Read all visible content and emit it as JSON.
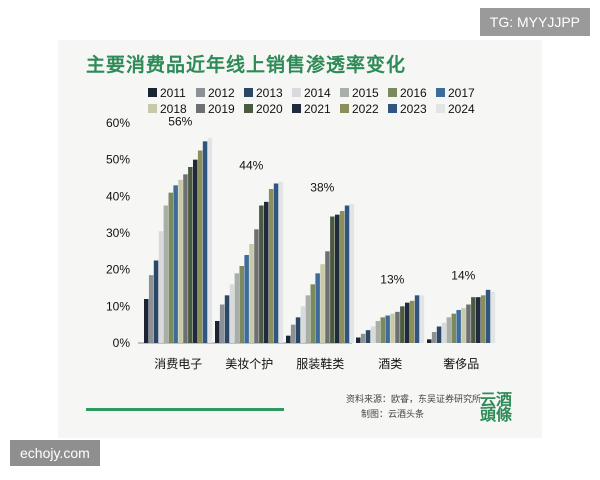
{
  "badges": {
    "top_right": "TG: MYYJJPP",
    "bottom_left": "echojy.com"
  },
  "footer": {
    "source_line": "资料来源：欧睿，东吴证券研究所",
    "author_line": "制图：云酒头条",
    "brand_line1": "云酒",
    "brand_line2": "頭條"
  },
  "chart_data": {
    "type": "bar",
    "title": "主要消费品近年线上销售渗透率变化",
    "xlabel": "",
    "ylabel": "",
    "ylim": [
      0,
      60
    ],
    "yticks": [
      "0%",
      "10%",
      "20%",
      "30%",
      "40%",
      "50%",
      "60%"
    ],
    "grid": false,
    "legend_position": "top",
    "categories": [
      "消费电子",
      "美妆个护",
      "服装鞋类",
      "酒类",
      "奢侈品"
    ],
    "series": [
      {
        "name": "2011",
        "color": "#1b2433",
        "values": [
          12,
          6,
          2,
          1.5,
          1
        ]
      },
      {
        "name": "2012",
        "color": "#8d9196",
        "values": [
          18.5,
          10.5,
          5,
          2.5,
          3
        ]
      },
      {
        "name": "2013",
        "color": "#2a4766",
        "values": [
          22.5,
          13,
          7,
          3.5,
          4.5
        ]
      },
      {
        "name": "2014",
        "color": "#d8dadc",
        "values": [
          30.5,
          16,
          10,
          4.5,
          5.5
        ]
      },
      {
        "name": "2015",
        "color": "#a9aea9",
        "values": [
          37.5,
          19,
          13,
          6,
          7
        ]
      },
      {
        "name": "2016",
        "color": "#7b8a5e",
        "values": [
          41,
          21,
          16,
          7,
          8
        ]
      },
      {
        "name": "2017",
        "color": "#3d6b9a",
        "values": [
          43,
          24,
          19,
          7.5,
          9
        ]
      },
      {
        "name": "2018",
        "color": "#c7c9a8",
        "values": [
          44.5,
          27,
          21.5,
          8,
          9.5
        ]
      },
      {
        "name": "2019",
        "color": "#6d7073",
        "values": [
          46,
          31,
          25,
          8.5,
          10.5
        ]
      },
      {
        "name": "2020",
        "color": "#4b5940",
        "values": [
          48,
          37.5,
          34.5,
          10,
          12.5
        ]
      },
      {
        "name": "2021",
        "color": "#1f2b3d",
        "values": [
          50,
          38.5,
          35,
          11,
          12.5
        ]
      },
      {
        "name": "2022",
        "color": "#8c8f5a",
        "values": [
          52.5,
          42,
          36,
          11.5,
          13
        ]
      },
      {
        "name": "2023",
        "color": "#2f5580",
        "values": [
          55,
          43.5,
          37.5,
          13,
          14.5
        ]
      },
      {
        "name": "2024",
        "color": "#e3e4e6",
        "values": [
          56,
          44,
          38,
          13,
          14
        ]
      }
    ],
    "annotations": [
      {
        "category": "消费电子",
        "text": "56%",
        "value": 56
      },
      {
        "category": "美妆个护",
        "text": "44%",
        "value": 44
      },
      {
        "category": "服装鞋类",
        "text": "38%",
        "value": 38
      },
      {
        "category": "酒类",
        "text": "13%",
        "value": 13
      },
      {
        "category": "奢侈品",
        "text": "14%",
        "value": 14
      }
    ]
  }
}
